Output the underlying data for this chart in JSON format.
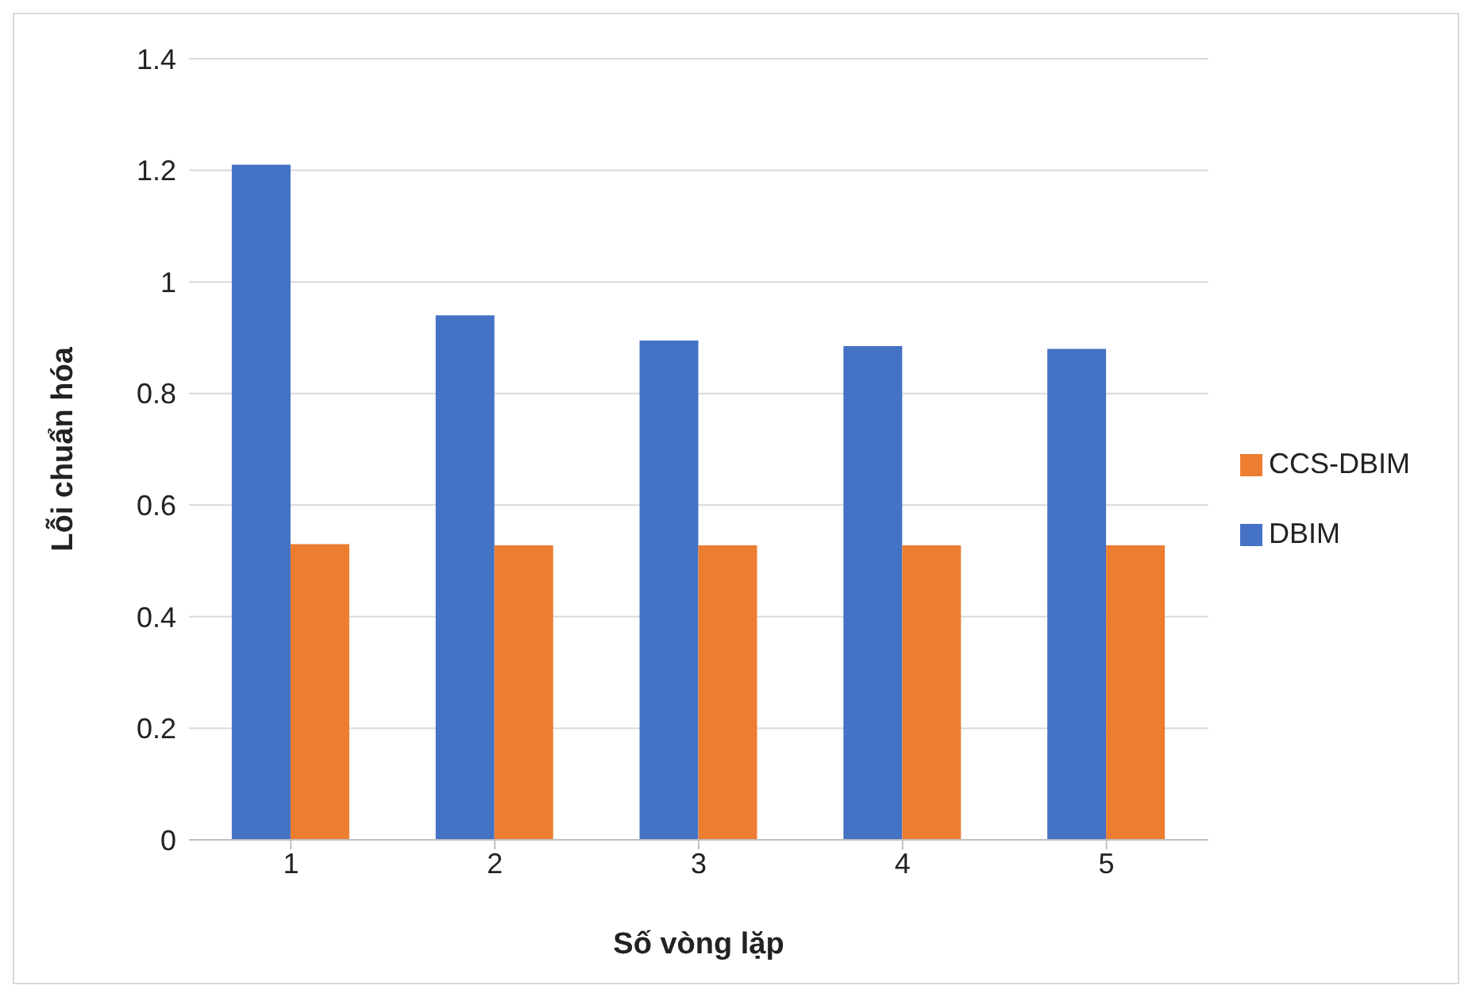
{
  "chart_data": {
    "type": "bar",
    "xlabel": "Số vòng lặp",
    "ylabel": "Lỗi chuẩn hóa",
    "categories": [
      "1",
      "2",
      "3",
      "4",
      "5"
    ],
    "series": [
      {
        "name": "DBIM",
        "color": "#4472c4",
        "values": [
          1.21,
          0.94,
          0.895,
          0.885,
          0.88
        ]
      },
      {
        "name": "CCS-DBIM",
        "color": "#ed7d31",
        "values": [
          0.53,
          0.528,
          0.528,
          0.528,
          0.528
        ]
      }
    ],
    "ylim": [
      0,
      1.4
    ],
    "yticks": [
      0,
      0.2,
      0.4,
      0.6,
      0.8,
      1,
      1.2,
      1.4
    ],
    "grid": "y",
    "legend": "right"
  }
}
